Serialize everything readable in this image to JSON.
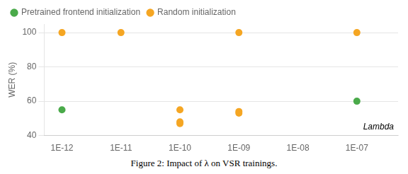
{
  "chart_data": {
    "type": "scatter",
    "series": [
      {
        "name": "Pretrained frontend initialization",
        "color": "#4aaa4a",
        "marker": "circle",
        "x": [
          1e-12,
          1e-07
        ],
        "values": [
          55,
          60
        ]
      },
      {
        "name": "Random initialization",
        "color": "#f5a623",
        "marker": "circle",
        "x": [
          1e-12,
          1e-11,
          1e-10,
          1e-10,
          1e-10,
          1e-09,
          1e-09,
          1e-09,
          1e-07
        ],
        "values": [
          100,
          100,
          55,
          47,
          48,
          53,
          54,
          100,
          100
        ]
      }
    ],
    "log": "x",
    "xlim": [
      5e-13,
      5e-07
    ],
    "xticks": [
      {
        "value": 1e-12,
        "label": "1E-12"
      },
      {
        "value": 1e-11,
        "label": "1E-11"
      },
      {
        "value": 1e-10,
        "label": "1E-10"
      },
      {
        "value": 1e-09,
        "label": "1E-09"
      },
      {
        "value": 1e-08,
        "label": "1E-08"
      },
      {
        "value": 1e-07,
        "label": "1E-07"
      }
    ],
    "ylim": [
      40,
      105
    ],
    "yticks": [
      40,
      60,
      80,
      100
    ],
    "ylabel": "WER (%)",
    "annotation": "Lambda",
    "caption": "Figure 2: Impact of λ on VSR trainings.",
    "grid": "y",
    "legend": "top"
  }
}
